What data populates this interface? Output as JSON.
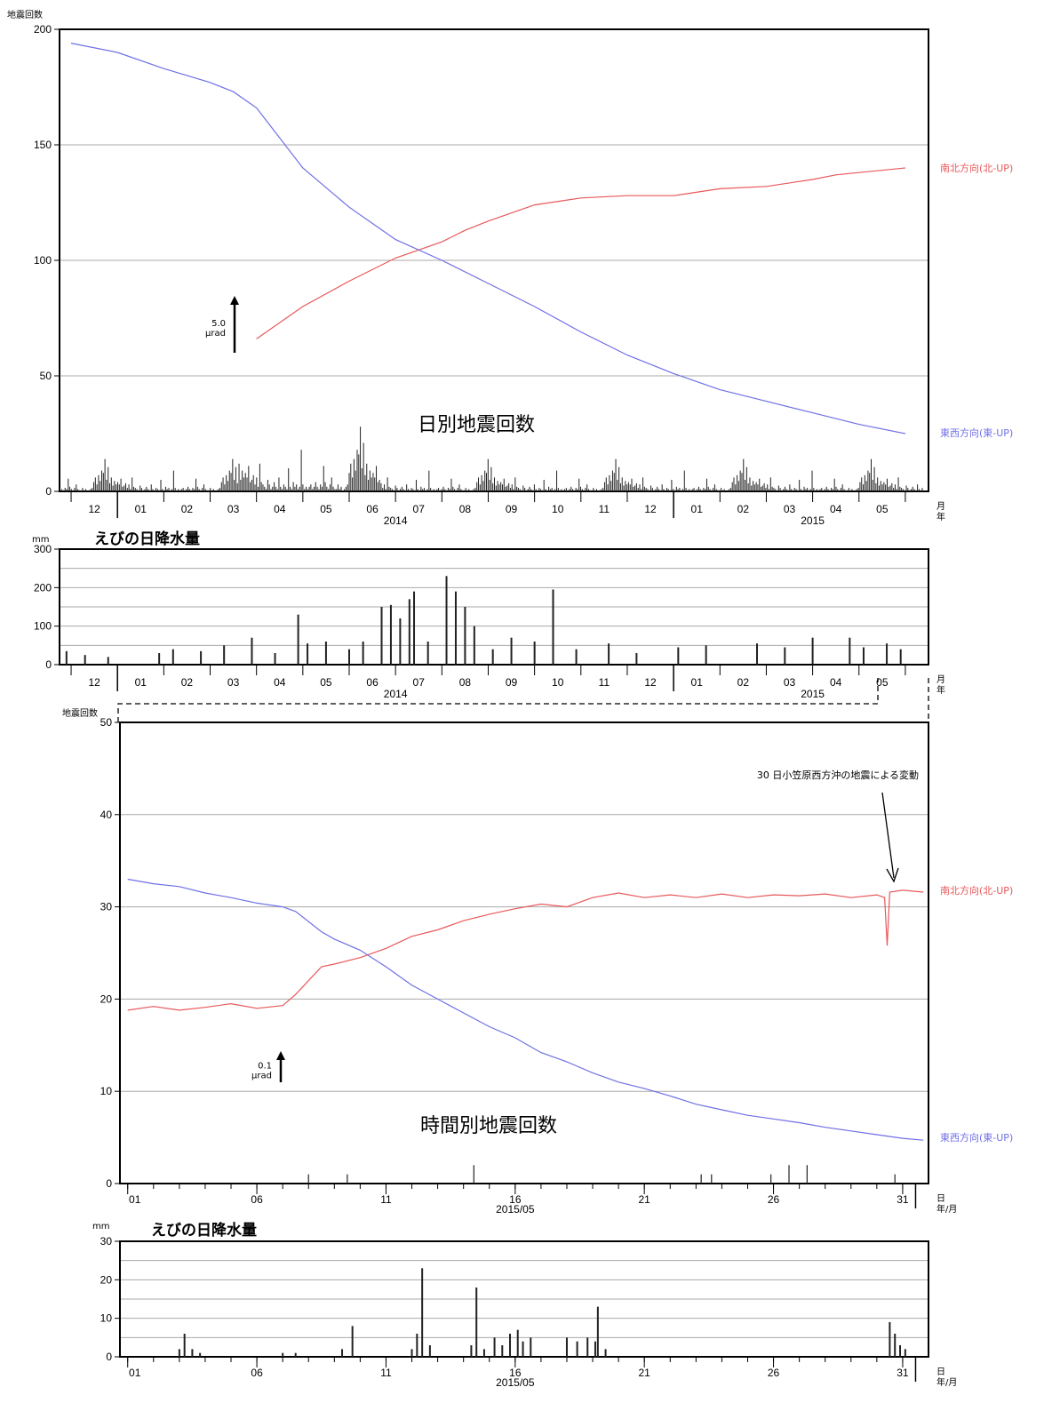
{
  "chart_data": [
    {
      "type": "bar+line",
      "panel": "tilt-long",
      "ylabel": "地震回数",
      "ylim": [
        0,
        200
      ],
      "y_ticks": [
        0,
        50,
        100,
        150,
        200
      ],
      "month_ticks": [
        "12",
        "01",
        "02",
        "03",
        "04",
        "05",
        "06",
        "07",
        "08",
        "09",
        "10",
        "11",
        "12",
        "01",
        "02",
        "03",
        "04",
        "05"
      ],
      "year_labels": [
        "2014",
        "2015"
      ],
      "x_unit_label": "月\n年",
      "bar_title": "日別地震回数",
      "daily_counts_sample": [
        2,
        1,
        3,
        2,
        11,
        4,
        2,
        1,
        3,
        6,
        2,
        1,
        1,
        3,
        1,
        2,
        0,
        1,
        2,
        3,
        8,
        12,
        6,
        14,
        9,
        18,
        16,
        28,
        10,
        21,
        7,
        12,
        5,
        9,
        6,
        8,
        6,
        11,
        4,
        5,
        7,
        3,
        6,
        2,
        12,
        4,
        3,
        2,
        1,
        5,
        3,
        1,
        2,
        4,
        2,
        1,
        6,
        2,
        1,
        3,
        2,
        1,
        10,
        2,
        1,
        4,
        2,
        3,
        1,
        2,
        18,
        3,
        1,
        2,
        1,
        2,
        3,
        1,
        2,
        4
      ],
      "series": [
        {
          "name": "南北方向(北-UP)",
          "color": "#e8585a",
          "x": [
            3.5,
            4.5,
            5.5,
            6.5,
            7.5,
            8.0,
            8.5,
            9.5,
            10.5,
            11.5,
            12.5,
            13.5,
            14.5,
            15.5,
            16.0,
            16.5,
            17.5
          ],
          "y": [
            66,
            80,
            91,
            101,
            108,
            113,
            117,
            124,
            127,
            128,
            128,
            131,
            132,
            135,
            137,
            138,
            140
          ]
        },
        {
          "name": "東西方向(東-UP)",
          "color": "#6f6fe6",
          "x": [
            -0.5,
            0.5,
            1.5,
            2.5,
            3.0,
            3.5,
            4.5,
            5.5,
            6.5,
            7.5,
            8.5,
            9.5,
            10.5,
            11.5,
            12.5,
            13.5,
            14.5,
            15.5,
            16.5,
            17.5
          ],
          "y": [
            194,
            190,
            183,
            177,
            173,
            166,
            140,
            123,
            109,
            100,
            90,
            80,
            69,
            59,
            51,
            44,
            39,
            34,
            29,
            25
          ]
        }
      ],
      "scale_bar": {
        "value": "5.0",
        "unit": "μrad"
      }
    },
    {
      "type": "bar",
      "panel": "rain-long",
      "title": "えびの日降水量",
      "unit": "mm",
      "ylim": [
        0,
        300
      ],
      "y_ticks": [
        0,
        100,
        200,
        300
      ],
      "month_ticks": [
        "12",
        "01",
        "02",
        "03",
        "04",
        "05",
        "06",
        "07",
        "08",
        "09",
        "10",
        "11",
        "12",
        "01",
        "02",
        "03",
        "04",
        "05"
      ],
      "year_labels": [
        "2014",
        "2015"
      ],
      "x_unit_label": "月\n年",
      "bars": [
        [
          -0.6,
          35
        ],
        [
          -0.2,
          25
        ],
        [
          0.3,
          20
        ],
        [
          1.4,
          30
        ],
        [
          1.7,
          40
        ],
        [
          2.3,
          35
        ],
        [
          2.8,
          50
        ],
        [
          3.4,
          70
        ],
        [
          3.9,
          30
        ],
        [
          4.4,
          130
        ],
        [
          4.6,
          55
        ],
        [
          5.0,
          60
        ],
        [
          5.5,
          40
        ],
        [
          5.8,
          60
        ],
        [
          6.2,
          150
        ],
        [
          6.4,
          155
        ],
        [
          6.6,
          120
        ],
        [
          6.8,
          170
        ],
        [
          6.9,
          190
        ],
        [
          7.2,
          60
        ],
        [
          7.6,
          230
        ],
        [
          7.8,
          190
        ],
        [
          8.0,
          150
        ],
        [
          8.2,
          100
        ],
        [
          8.6,
          40
        ],
        [
          9.0,
          70
        ],
        [
          9.5,
          60
        ],
        [
          9.9,
          195
        ],
        [
          10.4,
          40
        ],
        [
          11.1,
          55
        ],
        [
          11.7,
          30
        ],
        [
          12.6,
          45
        ],
        [
          13.2,
          50
        ],
        [
          14.3,
          55
        ],
        [
          14.9,
          45
        ],
        [
          15.5,
          70
        ],
        [
          16.3,
          70
        ],
        [
          16.6,
          45
        ],
        [
          17.1,
          55
        ],
        [
          17.4,
          40
        ]
      ]
    },
    {
      "type": "bar+line",
      "panel": "tilt-may",
      "ylabel": "地震回数",
      "ylim": [
        0,
        50
      ],
      "y_ticks": [
        0,
        10,
        20,
        30,
        40,
        50
      ],
      "day_ticks": [
        "01",
        "06",
        "11",
        "16",
        "21",
        "26",
        "31"
      ],
      "x_center_label": "2015/05",
      "x_unit_label": "日\n年/月",
      "bar_title": "時間別地震回数",
      "hourly_counts": [
        [
          8.0,
          1
        ],
        [
          9.5,
          1
        ],
        [
          14.4,
          2
        ],
        [
          23.2,
          1
        ],
        [
          23.6,
          1
        ],
        [
          25.9,
          1
        ],
        [
          26.6,
          2
        ],
        [
          27.3,
          2
        ],
        [
          30.7,
          1
        ]
      ],
      "series": [
        {
          "name": "南北方向(北-UP)",
          "color": "#e8585a",
          "x": [
            1,
            2,
            3,
            4,
            5,
            6,
            7,
            7.5,
            8.5,
            9,
            10,
            11,
            12,
            13,
            14,
            15,
            16,
            17,
            18,
            19,
            20,
            21,
            22,
            23,
            24,
            25,
            26,
            27,
            28,
            29,
            30,
            30.3,
            30.4,
            30.5,
            31,
            31.8
          ],
          "y": [
            18.8,
            19.2,
            18.8,
            19.1,
            19.5,
            19.0,
            19.3,
            20.5,
            23.5,
            23.8,
            24.5,
            25.5,
            26.8,
            27.5,
            28.5,
            29.2,
            29.8,
            30.3,
            30.0,
            31.0,
            31.5,
            31.0,
            31.3,
            31.0,
            31.4,
            31.0,
            31.3,
            31.2,
            31.4,
            31.0,
            31.3,
            31.0,
            25.8,
            31.6,
            31.8,
            31.6
          ]
        },
        {
          "name": "東西方向(東-UP)",
          "color": "#6f6fe6",
          "x": [
            1,
            2,
            3,
            4,
            5,
            6,
            7,
            7.5,
            8.5,
            9,
            10,
            11,
            12,
            13,
            14,
            15,
            16,
            17,
            18,
            19,
            20,
            21,
            22,
            23,
            24,
            25,
            26,
            27,
            28,
            29,
            30,
            31,
            31.8
          ],
          "y": [
            33.0,
            32.5,
            32.2,
            31.5,
            31.0,
            30.4,
            30.0,
            29.5,
            27.3,
            26.5,
            25.3,
            23.5,
            21.5,
            20.0,
            18.5,
            17.0,
            15.8,
            14.2,
            13.2,
            12.0,
            11.0,
            10.3,
            9.5,
            8.6,
            8.0,
            7.4,
            7.0,
            6.6,
            6.1,
            5.7,
            5.3,
            4.9,
            4.7
          ]
        }
      ],
      "scale_bar": {
        "value": "0.1",
        "unit": "μrad"
      },
      "annotation": "30 日小笠原西方沖の地震による変動"
    },
    {
      "type": "bar",
      "panel": "rain-may",
      "title": "えびの日降水量",
      "unit": "mm",
      "ylim": [
        0,
        30
      ],
      "y_ticks": [
        0,
        10,
        20,
        30
      ],
      "day_ticks": [
        "01",
        "06",
        "11",
        "16",
        "21",
        "26",
        "31"
      ],
      "x_center_label": "2015/05",
      "x_unit_label": "日\n年/月",
      "bars": [
        [
          3.0,
          2
        ],
        [
          3.2,
          6
        ],
        [
          3.5,
          2
        ],
        [
          3.8,
          1
        ],
        [
          7.0,
          1
        ],
        [
          7.5,
          1
        ],
        [
          9.3,
          2
        ],
        [
          9.7,
          8
        ],
        [
          12.0,
          2
        ],
        [
          12.2,
          6
        ],
        [
          12.4,
          23
        ],
        [
          12.7,
          3
        ],
        [
          14.3,
          3
        ],
        [
          14.5,
          18
        ],
        [
          14.8,
          2
        ],
        [
          15.2,
          5
        ],
        [
          15.5,
          3
        ],
        [
          15.8,
          6
        ],
        [
          16.1,
          7
        ],
        [
          16.3,
          4
        ],
        [
          16.6,
          5
        ],
        [
          18.0,
          5
        ],
        [
          18.4,
          4
        ],
        [
          18.8,
          5
        ],
        [
          19.1,
          4
        ],
        [
          19.2,
          13
        ],
        [
          19.5,
          2
        ],
        [
          30.5,
          9
        ],
        [
          30.7,
          6
        ],
        [
          30.9,
          3
        ],
        [
          31.1,
          2
        ]
      ]
    }
  ]
}
